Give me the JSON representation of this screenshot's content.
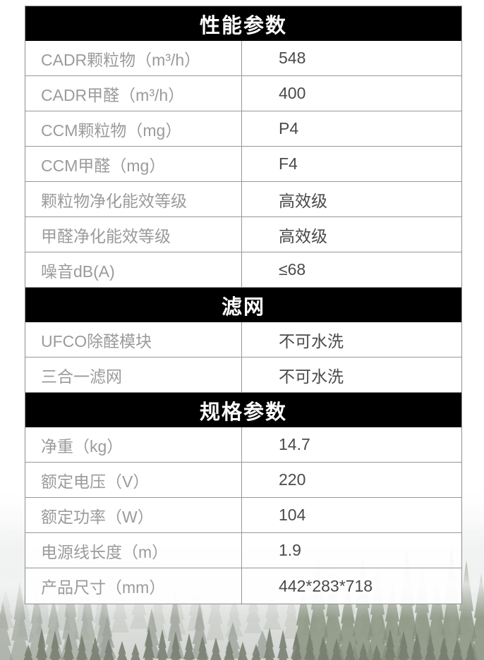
{
  "table": {
    "sections": [
      {
        "title": "性能参数",
        "rows": [
          {
            "label": "CADR颗粒物（m³/h）",
            "value": "548"
          },
          {
            "label": "CADR甲醛（m³/h）",
            "value": "400"
          },
          {
            "label": "CCM颗粒物（mg）",
            "value": "P4"
          },
          {
            "label": "CCM甲醛（mg）",
            "value": "F4"
          },
          {
            "label": "颗粒物净化能效等级",
            "value": "高效级"
          },
          {
            "label": "甲醛净化能效等级",
            "value": "高效级"
          },
          {
            "label": "噪音dB(A)",
            "value": "≤68"
          }
        ]
      },
      {
        "title": "滤网",
        "rows": [
          {
            "label": "UFCO除醛模块",
            "value": "不可水洗"
          },
          {
            "label": "三合一滤网",
            "value": "不可水洗"
          }
        ]
      },
      {
        "title": "规格参数",
        "rows": [
          {
            "label": "净重（kg）",
            "value": "14.7"
          },
          {
            "label": "额定电压（V）",
            "value": "220"
          },
          {
            "label": "额定功率（W）",
            "value": "104"
          },
          {
            "label": "电源线长度（m）",
            "value": "1.9"
          },
          {
            "label": "产品尺寸（mm）",
            "value": "442*283*718"
          }
        ]
      }
    ]
  },
  "colors": {
    "section_header_bg": "#000000",
    "section_header_text": "#ffffff",
    "label_text": "#9b9b9b",
    "value_text": "#4a4a4a",
    "table_border": "#8f8f8f"
  }
}
